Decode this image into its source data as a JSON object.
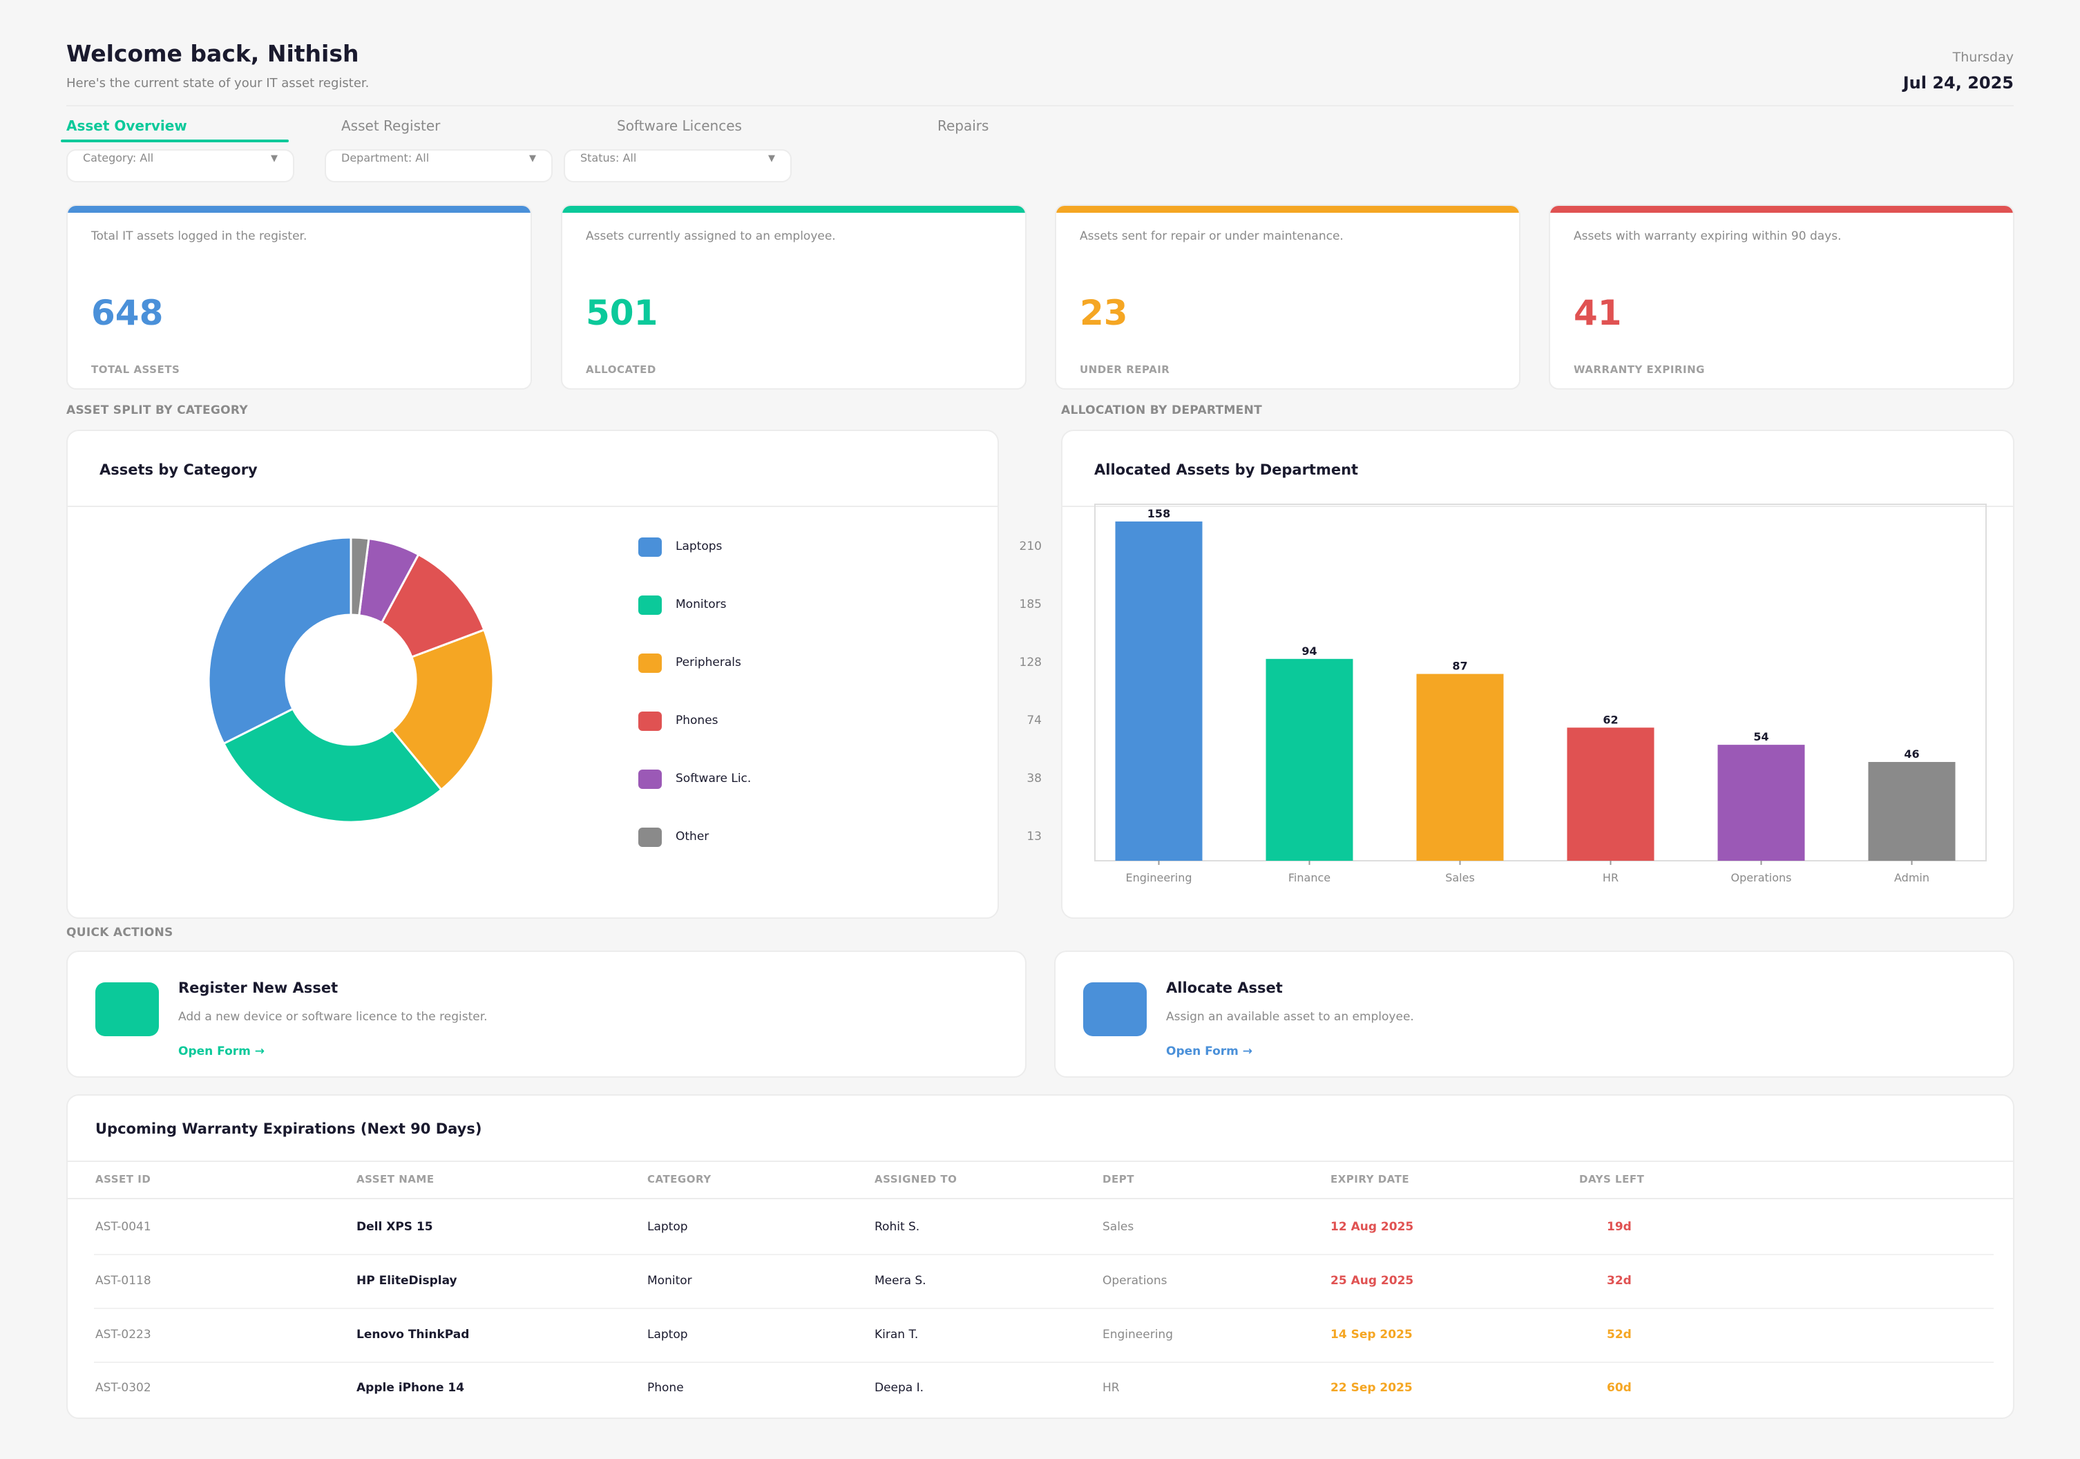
{
  "header": {
    "title": "Welcome back, Nithish",
    "subtitle": "Here's the current state of your IT asset register.",
    "weekday": "Thursday",
    "date": "Jul 24, 2025"
  },
  "tabs": [
    {
      "label": "Asset Overview",
      "active": true
    },
    {
      "label": "Asset Register",
      "active": false
    },
    {
      "label": "Software Licences",
      "active": false
    },
    {
      "label": "Repairs",
      "active": false
    }
  ],
  "filters": [
    {
      "label": "Category: All"
    },
    {
      "label": "Department: All"
    },
    {
      "label": "Status: All"
    }
  ],
  "kpis": [
    {
      "desc": "Total IT assets logged in the register.",
      "value": "648",
      "caption": "TOTAL ASSETS",
      "color": "#4a90d9"
    },
    {
      "desc": "Assets currently assigned to an employee.",
      "value": "501",
      "caption": "ALLOCATED",
      "color": "#0bc99a"
    },
    {
      "desc": "Assets sent for repair or under maintenance.",
      "value": "23",
      "caption": "UNDER REPAIR",
      "color": "#f5a623"
    },
    {
      "desc": "Assets with warranty expiring within 90 days.",
      "value": "41",
      "caption": "WARRANTY EXPIRING",
      "color": "#e05252"
    }
  ],
  "sections": {
    "category": "ASSET SPLIT BY CATEGORY",
    "department": "ALLOCATION BY DEPARTMENT",
    "quick_actions": "QUICK ACTIONS"
  },
  "category_card": {
    "title": "Assets by Category",
    "items": [
      {
        "name": "Laptops",
        "count": "210",
        "value": 210,
        "color": "#4a90d9"
      },
      {
        "name": "Monitors",
        "count": "185",
        "value": 185,
        "color": "#0bc99a"
      },
      {
        "name": "Peripherals",
        "count": "128",
        "value": 128,
        "color": "#f5a623"
      },
      {
        "name": "Phones",
        "count": "74",
        "value": 74,
        "color": "#e05252"
      },
      {
        "name": "Software Lic.",
        "count": "38",
        "value": 38,
        "color": "#9b59b6"
      },
      {
        "name": "Other",
        "count": "13",
        "value": 13,
        "color": "#8a8a8a"
      }
    ]
  },
  "department_card": {
    "title": "Allocated Assets by Department"
  },
  "chart_data": [
    {
      "type": "pie",
      "title": "Assets by Category",
      "categories": [
        "Laptops",
        "Monitors",
        "Peripherals",
        "Phones",
        "Software Lic.",
        "Other"
      ],
      "values": [
        210,
        185,
        128,
        74,
        38,
        13
      ],
      "legend": "right",
      "donut": true
    },
    {
      "type": "bar",
      "title": "Allocated Assets by Department",
      "categories": [
        "Engineering",
        "Finance",
        "Sales",
        "HR",
        "Operations",
        "Admin"
      ],
      "values": [
        158,
        94,
        87,
        62,
        54,
        46
      ],
      "labels": [
        "158",
        "94",
        "87",
        "62",
        "54",
        "46"
      ],
      "colors": [
        "#4a90d9",
        "#0bc99a",
        "#f5a623",
        "#e05252",
        "#9b59b6",
        "#8a8a8a"
      ],
      "ylim": [
        0,
        166
      ],
      "grid": false
    }
  ],
  "quick_actions": [
    {
      "title": "Register New Asset",
      "desc": "Add a new device or software licence to the register.",
      "link": "Open Form →",
      "color": "#0bc99a"
    },
    {
      "title": "Allocate Asset",
      "desc": "Assign an available asset to an employee.",
      "link": "Open Form →",
      "color": "#4a90d9"
    }
  ],
  "warranty_table": {
    "title": "Upcoming Warranty Expirations (Next 90 Days)",
    "columns": [
      "ASSET ID",
      "ASSET NAME",
      "CATEGORY",
      "ASSIGNED TO",
      "DEPT",
      "EXPIRY DATE",
      "DAYS LEFT"
    ],
    "rows": [
      {
        "id": "AST-0041",
        "name": "Dell XPS 15",
        "category": "Laptop",
        "assigned": "Rohit S.",
        "dept": "Sales",
        "expiry": "12 Aug 2025",
        "days": "19d",
        "color": "#e05252"
      },
      {
        "id": "AST-0118",
        "name": "HP EliteDisplay",
        "category": "Monitor",
        "assigned": "Meera S.",
        "dept": "Operations",
        "expiry": "25 Aug 2025",
        "days": "32d",
        "color": "#e05252"
      },
      {
        "id": "AST-0223",
        "name": "Lenovo ThinkPad",
        "category": "Laptop",
        "assigned": "Kiran T.",
        "dept": "Engineering",
        "expiry": "14 Sep 2025",
        "days": "52d",
        "color": "#f5a623"
      },
      {
        "id": "AST-0302",
        "name": "Apple iPhone 14",
        "category": "Phone",
        "assigned": "Deepa I.",
        "dept": "HR",
        "expiry": "22 Sep 2025",
        "days": "60d",
        "color": "#f5a623"
      }
    ]
  }
}
